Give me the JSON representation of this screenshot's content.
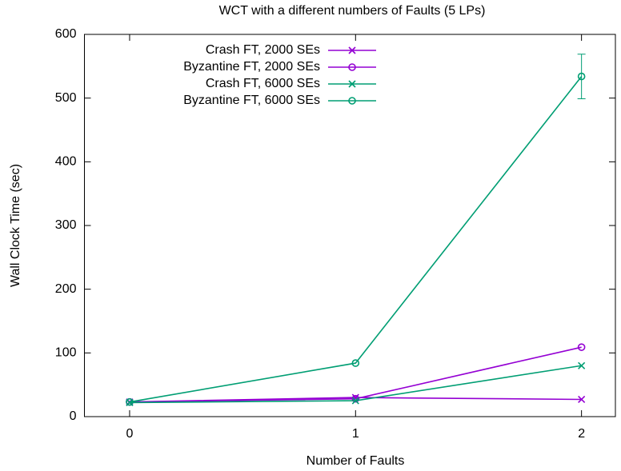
{
  "chart_data": {
    "type": "line",
    "title": "WCT with a different numbers of Faults (5 LPs)",
    "xlabel": "Number of Faults",
    "ylabel": "Wall Clock Time (sec)",
    "x": [
      0,
      1,
      2
    ],
    "xlim": [
      -0.2,
      2.15
    ],
    "xticks": [
      0,
      1,
      2
    ],
    "ylim": [
      0,
      600
    ],
    "yticks": [
      0,
      100,
      200,
      300,
      400,
      500,
      600
    ],
    "legend": "top-left",
    "series": [
      {
        "name": "Crash FT, 2000 SEs",
        "color": "#9400d3",
        "marker": "x",
        "values": [
          23,
          30,
          27
        ]
      },
      {
        "name": "Byzantine FT, 2000 SEs",
        "color": "#9400d3",
        "marker": "circle",
        "values": [
          23,
          28,
          109
        ]
      },
      {
        "name": "Crash FT, 6000 SEs",
        "color": "#009e73",
        "marker": "x",
        "values": [
          22,
          25,
          80
        ]
      },
      {
        "name": "Byzantine FT, 6000 SEs",
        "color": "#009e73",
        "marker": "circle",
        "values": [
          23,
          84,
          534
        ],
        "errors": [
          null,
          null,
          35
        ]
      }
    ]
  }
}
